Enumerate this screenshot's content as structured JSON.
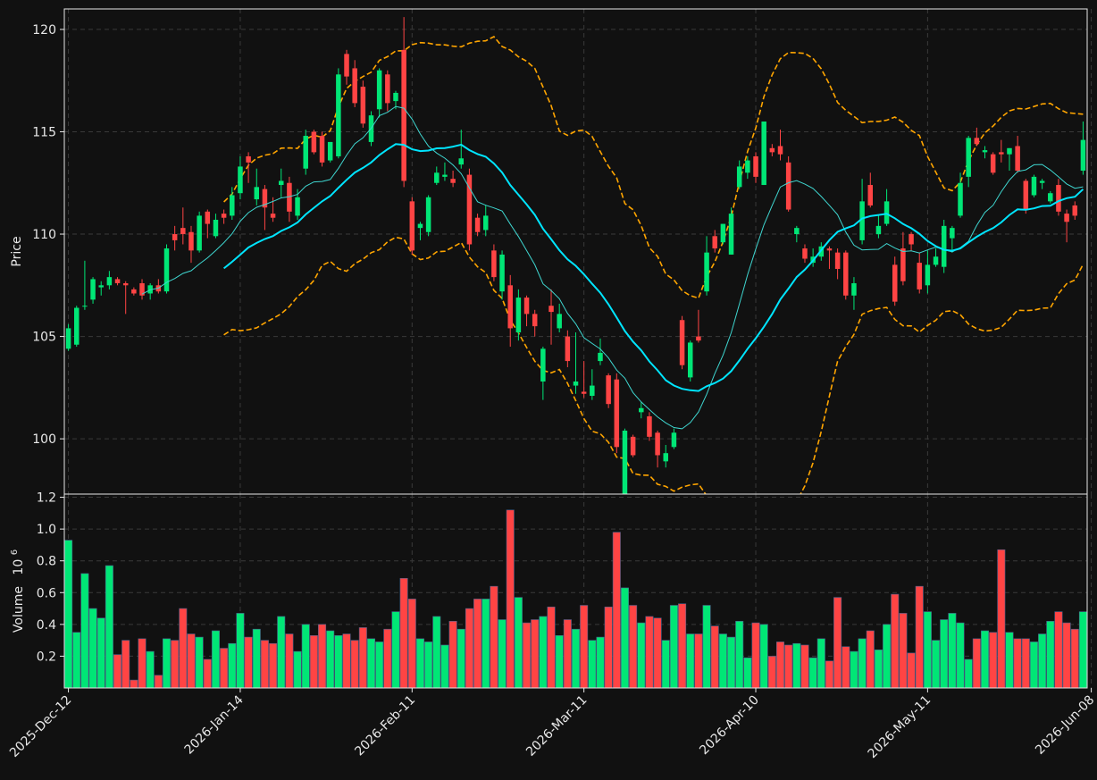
{
  "chart_data": {
    "type": "candlestick",
    "style": "dark",
    "colors": {
      "background": "#111111",
      "up": "#00e676",
      "down": "#ff4444",
      "sma_fast": "#3fd6d0",
      "sma_slow": "#00e5ff",
      "bands": "#ffa500",
      "grid": "#3a3a3a",
      "text": "#e8e8e8"
    },
    "price_panel": {
      "ylabel": "Price",
      "ylim": [
        97.3,
        121
      ],
      "yticks": [
        100,
        105,
        110,
        115,
        120
      ]
    },
    "volume_panel": {
      "ylabel": "Volume",
      "multiplier": "10",
      "multiplier_exp": "6",
      "ylim": [
        0.0,
        1.22
      ],
      "yticks": [
        "0.2",
        "0.4",
        "0.6",
        "0.8",
        "1.0",
        "1.2"
      ]
    },
    "x_ticks": [
      {
        "index": 0,
        "label": "2025-Dec-12"
      },
      {
        "index": 21,
        "label": "2026-Jan-14"
      },
      {
        "index": 42,
        "label": "2026-Feb-11"
      },
      {
        "index": 63,
        "label": "2026-Mar-11"
      },
      {
        "index": 84,
        "label": "2026-Apr-10"
      },
      {
        "index": 105,
        "label": "2026-May-11"
      },
      {
        "index": 125,
        "label": "2026-Jun-08"
      }
    ],
    "ohlc": [
      [
        104.4,
        105.6,
        104.3,
        105.4
      ],
      [
        104.6,
        106.5,
        104.5,
        106.4
      ],
      [
        106.5,
        108.7,
        106.3,
        106.5
      ],
      [
        106.8,
        107.9,
        106.6,
        107.8
      ],
      [
        107.4,
        107.7,
        107.0,
        107.5
      ],
      [
        107.5,
        108.2,
        107.3,
        107.9
      ],
      [
        107.8,
        107.9,
        107.5,
        107.6
      ],
      [
        107.6,
        107.7,
        106.1,
        107.5
      ],
      [
        107.3,
        107.4,
        107.0,
        107.1
      ],
      [
        107.6,
        107.8,
        106.8,
        107.0
      ],
      [
        107.1,
        107.6,
        106.8,
        107.5
      ],
      [
        107.5,
        107.8,
        107.1,
        107.2
      ],
      [
        107.2,
        109.5,
        107.1,
        109.3
      ],
      [
        110.0,
        110.4,
        109.2,
        109.7
      ],
      [
        110.3,
        111.3,
        109.5,
        110.0
      ],
      [
        110.1,
        110.4,
        108.6,
        109.2
      ],
      [
        109.2,
        111.1,
        109.1,
        110.9
      ],
      [
        111.1,
        111.2,
        109.8,
        110.5
      ],
      [
        109.9,
        111.0,
        109.8,
        110.7
      ],
      [
        111.0,
        111.2,
        110.5,
        110.8
      ],
      [
        110.9,
        112.3,
        110.7,
        111.9
      ],
      [
        112.0,
        113.8,
        111.7,
        113.3
      ],
      [
        113.8,
        114.0,
        112.5,
        113.5
      ],
      [
        111.7,
        113.2,
        111.4,
        112.3
      ],
      [
        112.2,
        112.4,
        110.2,
        111.3
      ],
      [
        111.0,
        111.8,
        110.6,
        110.8
      ],
      [
        112.4,
        113.2,
        111.8,
        112.6
      ],
      [
        112.5,
        112.8,
        110.6,
        111.1
      ],
      [
        110.9,
        112.2,
        110.7,
        111.8
      ],
      [
        113.2,
        115.1,
        112.9,
        114.8
      ],
      [
        115.0,
        115.1,
        113.9,
        114.0
      ],
      [
        114.8,
        115.0,
        113.3,
        113.5
      ],
      [
        113.6,
        114.5,
        113.5,
        114.5
      ],
      [
        113.8,
        118.1,
        113.7,
        117.8
      ],
      [
        118.8,
        119.0,
        117.3,
        117.7
      ],
      [
        118.1,
        118.5,
        116.2,
        116.4
      ],
      [
        117.2,
        117.5,
        115.2,
        115.4
      ],
      [
        114.5,
        116.0,
        114.3,
        115.8
      ],
      [
        116.1,
        118.1,
        115.7,
        118.0
      ],
      [
        117.8,
        118.0,
        116.0,
        116.4
      ],
      [
        116.5,
        117.0,
        116.1,
        116.9
      ],
      [
        119.0,
        120.6,
        112.3,
        112.6
      ],
      [
        111.6,
        111.8,
        109.0,
        109.2
      ],
      [
        110.3,
        110.6,
        109.7,
        110.5
      ],
      [
        110.1,
        111.9,
        109.9,
        111.8
      ],
      [
        112.5,
        113.3,
        112.4,
        113.0
      ],
      [
        112.8,
        113.5,
        112.6,
        112.9
      ],
      [
        112.7,
        113.1,
        112.3,
        112.5
      ],
      [
        113.4,
        115.1,
        113.2,
        113.7
      ],
      [
        112.9,
        113.2,
        109.2,
        109.5
      ],
      [
        110.8,
        111.0,
        109.9,
        110.1
      ],
      [
        110.2,
        111.4,
        109.9,
        110.9
      ],
      [
        109.2,
        109.5,
        107.7,
        107.9
      ],
      [
        107.2,
        109.2,
        106.8,
        109.0
      ],
      [
        107.5,
        108.0,
        104.5,
        105.4
      ],
      [
        105.2,
        107.3,
        104.8,
        106.9
      ],
      [
        106.9,
        107.0,
        105.5,
        106.1
      ],
      [
        106.1,
        106.3,
        105.0,
        105.5
      ],
      [
        102.8,
        104.5,
        101.9,
        104.4
      ],
      [
        106.5,
        107.3,
        104.6,
        106.2
      ],
      [
        105.4,
        106.6,
        105.2,
        106.1
      ],
      [
        105.0,
        105.3,
        103.5,
        103.8
      ],
      [
        102.6,
        105.2,
        102.2,
        102.8
      ],
      [
        102.3,
        103.8,
        102.0,
        102.2
      ],
      [
        102.1,
        103.4,
        101.9,
        102.6
      ],
      [
        103.8,
        104.9,
        103.6,
        104.2
      ],
      [
        103.1,
        103.2,
        101.5,
        101.7
      ],
      [
        102.9,
        103.2,
        99.3,
        99.6
      ],
      [
        97.3,
        100.5,
        96.9,
        100.4
      ],
      [
        100.1,
        100.2,
        99.1,
        99.2
      ],
      [
        101.3,
        101.8,
        101.0,
        101.5
      ],
      [
        101.1,
        101.3,
        99.9,
        100.1
      ],
      [
        100.3,
        100.4,
        98.6,
        99.2
      ],
      [
        98.9,
        99.7,
        98.6,
        99.3
      ],
      [
        99.6,
        100.5,
        99.5,
        100.3
      ],
      [
        105.8,
        106.0,
        103.4,
        103.6
      ],
      [
        103.0,
        104.8,
        102.8,
        104.7
      ],
      [
        105.0,
        106.3,
        104.7,
        104.8
      ],
      [
        107.2,
        109.9,
        107.0,
        109.1
      ],
      [
        109.9,
        110.2,
        109.1,
        109.3
      ],
      [
        109.6,
        110.5,
        109.5,
        110.5
      ],
      [
        109.0,
        111.3,
        109.0,
        111.0
      ],
      [
        112.3,
        113.6,
        112.2,
        113.3
      ],
      [
        113.0,
        113.8,
        112.7,
        113.6
      ],
      [
        113.8,
        114.0,
        112.5,
        112.8
      ],
      [
        112.4,
        115.5,
        112.4,
        115.5
      ],
      [
        114.2,
        114.4,
        113.8,
        114.0
      ],
      [
        114.3,
        115.1,
        113.6,
        113.9
      ],
      [
        113.5,
        113.8,
        111.1,
        111.2
      ],
      [
        110.0,
        110.4,
        109.6,
        110.3
      ],
      [
        109.3,
        109.5,
        108.6,
        108.8
      ],
      [
        108.6,
        109.3,
        108.4,
        108.9
      ],
      [
        108.9,
        109.6,
        108.7,
        109.4
      ],
      [
        109.3,
        109.4,
        108.3,
        109.2
      ],
      [
        109.1,
        109.3,
        107.8,
        108.3
      ],
      [
        109.1,
        109.2,
        106.8,
        107.0
      ],
      [
        107.0,
        107.9,
        106.3,
        107.6
      ],
      [
        109.7,
        112.7,
        109.5,
        111.6
      ],
      [
        112.4,
        113.0,
        111.3,
        111.4
      ],
      [
        110.0,
        110.9,
        109.8,
        110.4
      ],
      [
        110.5,
        112.2,
        110.4,
        111.6
      ],
      [
        108.5,
        108.9,
        106.5,
        106.7
      ],
      [
        109.3,
        110.1,
        107.5,
        107.7
      ],
      [
        110.0,
        110.1,
        109.2,
        109.5
      ],
      [
        108.6,
        109.1,
        107.1,
        107.3
      ],
      [
        107.5,
        109.2,
        107.1,
        108.5
      ],
      [
        108.5,
        109.3,
        108.4,
        108.9
      ],
      [
        108.4,
        110.7,
        108.1,
        110.4
      ],
      [
        109.8,
        110.4,
        109.1,
        110.3
      ],
      [
        110.9,
        113.0,
        110.8,
        112.5
      ],
      [
        112.8,
        114.8,
        112.3,
        114.7
      ],
      [
        114.7,
        115.2,
        114.3,
        114.4
      ],
      [
        114.0,
        114.3,
        113.7,
        114.1
      ],
      [
        113.9,
        114.0,
        112.9,
        113.0
      ],
      [
        114.0,
        114.6,
        113.5,
        113.9
      ],
      [
        113.9,
        114.2,
        113.1,
        114.2
      ],
      [
        114.3,
        114.8,
        113.0,
        113.1
      ],
      [
        112.6,
        112.7,
        111.0,
        111.2
      ],
      [
        111.9,
        112.9,
        111.8,
        112.8
      ],
      [
        112.5,
        112.7,
        112.2,
        112.6
      ],
      [
        111.6,
        112.1,
        111.5,
        112.0
      ],
      [
        112.4,
        112.7,
        110.9,
        111.1
      ],
      [
        111.0,
        111.2,
        109.6,
        110.6
      ],
      [
        111.4,
        111.6,
        110.7,
        110.9
      ],
      [
        113.1,
        115.5,
        112.9,
        114.6
      ]
    ],
    "volume": [
      0.93,
      0.35,
      0.72,
      0.5,
      0.44,
      0.77,
      0.21,
      0.3,
      0.05,
      0.31,
      0.23,
      0.08,
      0.31,
      0.3,
      0.5,
      0.34,
      0.32,
      0.18,
      0.36,
      0.25,
      0.28,
      0.47,
      0.32,
      0.37,
      0.3,
      0.28,
      0.45,
      0.34,
      0.23,
      0.4,
      0.33,
      0.4,
      0.36,
      0.33,
      0.34,
      0.3,
      0.38,
      0.31,
      0.29,
      0.37,
      0.48,
      0.69,
      0.56,
      0.31,
      0.29,
      0.45,
      0.27,
      0.42,
      0.37,
      0.5,
      0.56,
      0.56,
      0.64,
      0.43,
      1.12,
      0.57,
      0.41,
      0.43,
      0.45,
      0.51,
      0.33,
      0.43,
      0.37,
      0.52,
      0.3,
      0.32,
      0.51,
      0.98,
      0.63,
      0.52,
      0.41,
      0.45,
      0.44,
      0.3,
      0.52,
      0.53,
      0.34,
      0.34,
      0.52,
      0.39,
      0.34,
      0.32,
      0.42,
      0.19,
      0.41,
      0.4,
      0.2,
      0.29,
      0.27,
      0.28,
      0.27,
      0.19,
      0.31,
      0.17,
      0.57,
      0.26,
      0.23,
      0.31,
      0.36,
      0.24,
      0.4,
      0.59,
      0.47,
      0.22,
      0.64,
      0.48,
      0.3,
      0.43,
      0.47,
      0.41,
      0.18,
      0.31,
      0.36,
      0.35,
      0.87,
      0.35,
      0.31,
      0.31,
      0.29,
      0.34,
      0.42,
      0.48,
      0.41,
      0.37,
      0.48
    ]
  }
}
